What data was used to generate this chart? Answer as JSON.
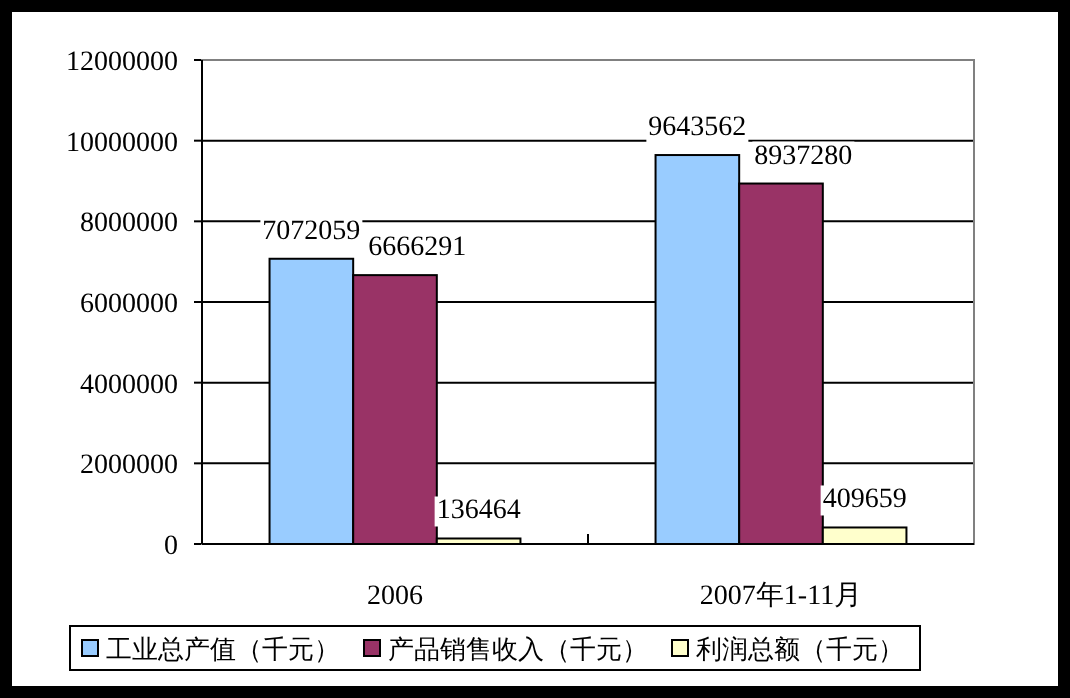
{
  "chart_data": {
    "type": "bar",
    "categories": [
      "2006",
      "2007年1-11月"
    ],
    "series": [
      {
        "name": "工业总产值（千元）",
        "color": "#99ccff",
        "values": [
          7072059,
          9643562
        ]
      },
      {
        "name": "产品销售收入（千元）",
        "color": "#993366",
        "values": [
          6666291,
          8937280
        ]
      },
      {
        "name": "利润总额（千元）",
        "color": "#ffffcc",
        "values": [
          136464,
          409659
        ]
      }
    ],
    "ylim": [
      0,
      12000000
    ],
    "yticks": [
      0,
      2000000,
      4000000,
      6000000,
      8000000,
      10000000,
      12000000
    ],
    "grid": "y",
    "legend": "bottom",
    "data_labels": true
  }
}
